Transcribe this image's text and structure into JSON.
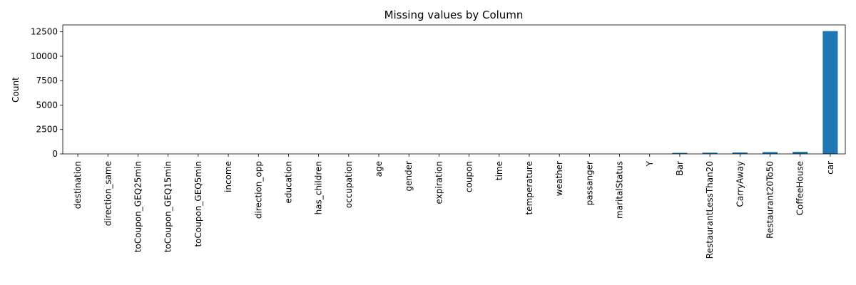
{
  "chart_data": {
    "type": "bar",
    "title": "Missing values by Column",
    "xlabel": "",
    "ylabel": "Count",
    "categories": [
      "destination",
      "direction_same",
      "toCoupon_GEQ25min",
      "toCoupon_GEQ15min",
      "toCoupon_GEQ5min",
      "income",
      "direction_opp",
      "education",
      "has_children",
      "occupation",
      "age",
      "gender",
      "expiration",
      "coupon",
      "time",
      "temperature",
      "weather",
      "passanger",
      "maritalStatus",
      "Y",
      "Bar",
      "RestaurantLessThan20",
      "CarryAway",
      "Restaurant20To50",
      "CoffeeHouse",
      "car"
    ],
    "values": [
      0,
      0,
      0,
      0,
      0,
      0,
      0,
      0,
      0,
      0,
      0,
      0,
      0,
      0,
      0,
      0,
      0,
      0,
      0,
      0,
      107,
      130,
      151,
      189,
      217,
      12576
    ],
    "ylim": [
      0,
      13206
    ],
    "yticks": [
      0,
      2500,
      5000,
      7500,
      10000,
      12500
    ],
    "ytick_labels": [
      "0",
      "2500",
      "5000",
      "7500",
      "10000",
      "12500"
    ],
    "bar_color": "#1f77b4",
    "grid": false,
    "legend": "none"
  }
}
